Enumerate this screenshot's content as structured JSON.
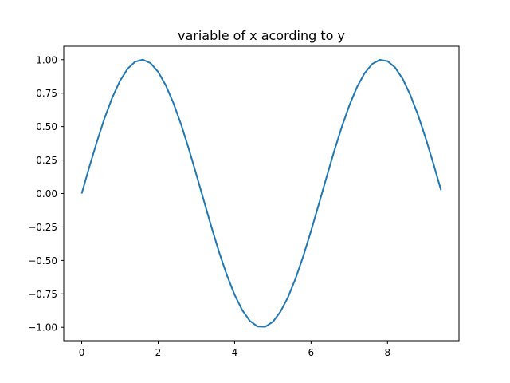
{
  "chart_data": {
    "type": "line",
    "title": "variable of x acording to y",
    "xlabel": "",
    "ylabel": "",
    "xlim": [
      -0.47,
      9.87
    ],
    "ylim": [
      -1.1,
      1.1
    ],
    "xticks": [
      0,
      2,
      4,
      6,
      8
    ],
    "xtick_labels": [
      "0",
      "2",
      "4",
      "6",
      "8"
    ],
    "yticks": [
      -1.0,
      -0.75,
      -0.5,
      -0.25,
      0.0,
      0.25,
      0.5,
      0.75,
      1.0
    ],
    "ytick_labels": [
      "−1.00",
      "−0.75",
      "−0.50",
      "−0.25",
      "0.00",
      "0.25",
      "0.50",
      "0.75",
      "1.00"
    ],
    "grid": false,
    "legend": "none",
    "series": [
      {
        "color": "#1f77b4",
        "x": [
          0,
          0.2,
          0.4,
          0.6,
          0.8,
          1.0,
          1.2,
          1.4,
          1.6,
          1.8,
          2.0,
          2.2,
          2.4,
          2.6,
          2.8,
          3.0,
          3.2,
          3.4,
          3.6,
          3.8,
          4.0,
          4.2,
          4.4,
          4.6,
          4.8,
          5.0,
          5.2,
          5.4,
          5.6,
          5.8,
          6.0,
          6.2,
          6.4,
          6.6,
          6.8,
          7.0,
          7.2,
          7.4,
          7.6,
          7.8,
          8.0,
          8.2,
          8.4,
          8.6,
          8.8,
          9.0,
          9.2,
          9.4
        ],
        "y": [
          0.0,
          0.199,
          0.389,
          0.565,
          0.717,
          0.841,
          0.932,
          0.985,
          1.0,
          0.974,
          0.909,
          0.808,
          0.675,
          0.516,
          0.335,
          0.141,
          -0.058,
          -0.256,
          -0.443,
          -0.612,
          -0.757,
          -0.872,
          -0.952,
          -0.994,
          -0.996,
          -0.959,
          -0.883,
          -0.773,
          -0.631,
          -0.465,
          -0.279,
          -0.083,
          0.117,
          0.312,
          0.494,
          0.657,
          0.794,
          0.899,
          0.968,
          0.999,
          0.989,
          0.941,
          0.855,
          0.734,
          0.585,
          0.412,
          0.223,
          0.025
        ]
      }
    ]
  }
}
